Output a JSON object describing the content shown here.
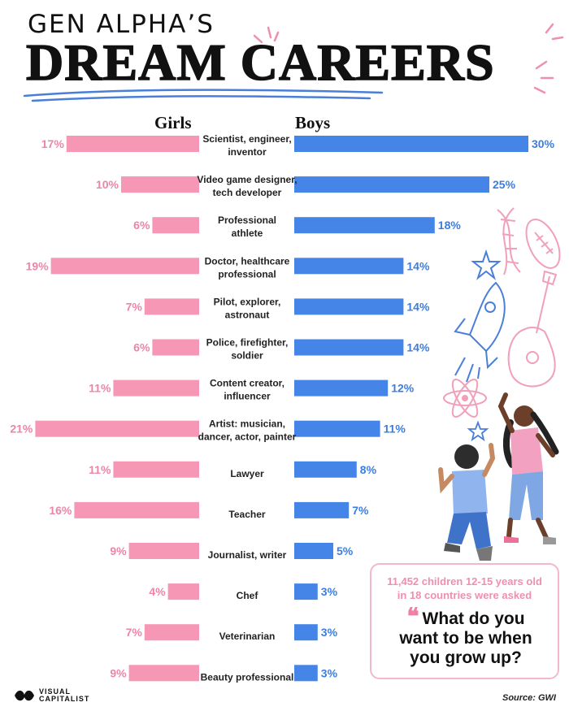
{
  "title": {
    "line1": "GEN ALPHA’S",
    "line2": "DREAM CAREERS"
  },
  "groups": {
    "left": "Girls",
    "right": "Boys"
  },
  "colors": {
    "girls": "#f597b5",
    "boys": "#4585e8",
    "girls_text": "#ec85a8",
    "boys_text": "#3c7ee0"
  },
  "chart_data": {
    "type": "bar",
    "orientation": "horizontal-butterfly",
    "unit": "%",
    "categories": [
      "Scientist, engineer, inventor",
      "Video game designer, tech developer",
      "Professional athlete",
      "Doctor, healthcare professional",
      "Pilot, explorer, astronaut",
      "Police, firefighter, soldier",
      "Content creator, influencer",
      "Artist: musician, dancer, actor, painter",
      "Lawyer",
      "Teacher",
      "Journalist, writer",
      "Chef",
      "Veterinarian",
      "Beauty professional"
    ],
    "category_lines": [
      [
        "Scientist, engineer,",
        "inventor"
      ],
      [
        "Video game designer,",
        "tech developer"
      ],
      [
        "Professional",
        "athlete"
      ],
      [
        "Doctor, healthcare",
        "professional"
      ],
      [
        "Pilot, explorer,",
        "astronaut"
      ],
      [
        "Police, firefighter,",
        "soldier"
      ],
      [
        "Content creator,",
        "influencer"
      ],
      [
        "Artist: musician,",
        "dancer, actor, painter"
      ],
      [
        "Lawyer"
      ],
      [
        "Teacher"
      ],
      [
        "Journalist, writer"
      ],
      [
        "Chef"
      ],
      [
        "Veterinarian"
      ],
      [
        "Beauty professional"
      ]
    ],
    "series": [
      {
        "name": "Girls",
        "values": [
          17,
          10,
          6,
          19,
          7,
          6,
          11,
          21,
          11,
          16,
          9,
          4,
          7,
          9
        ]
      },
      {
        "name": "Boys",
        "values": [
          30,
          25,
          18,
          14,
          14,
          14,
          12,
          11,
          8,
          7,
          5,
          3,
          3,
          3
        ]
      }
    ],
    "value_labels": {
      "girls": [
        "17%",
        "10%",
        "6%",
        "19%",
        "7%",
        "6%",
        "11%",
        "21%",
        "11%",
        "16%",
        "9%",
        "4%",
        "7%",
        "9%"
      ],
      "boys": [
        "30%",
        "25%",
        "18%",
        "14%",
        "14%",
        "14%",
        "12%",
        "11%",
        "8%",
        "7%",
        "5%",
        "3%",
        "3%",
        "3%"
      ]
    },
    "grid": false,
    "legend": "top-center"
  },
  "info": {
    "note_line1": "11,452 children 12-15 years old",
    "note_line2": "in 18 countries were asked",
    "quote_mark": "❝",
    "question_line1": "What do you",
    "question_line2": "want to be when",
    "question_line3": "you grow up?"
  },
  "logo": {
    "line1": "VISUAL",
    "line2": "CAPITALIST"
  },
  "source": "Source: GWI"
}
